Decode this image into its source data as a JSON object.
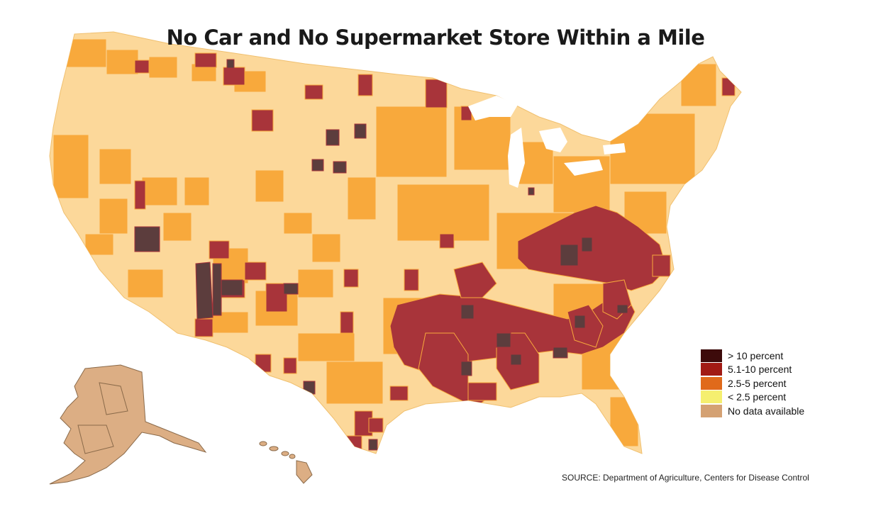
{
  "title": "No Car and No Supermarket Store Within a Mile",
  "legend": [
    {
      "label": "> 10 percent",
      "color": "#3d0b0b"
    },
    {
      "label": "5.1-10 percent",
      "color": "#a11a14"
    },
    {
      "label": "2.5-5 percent",
      "color": "#e06a1b"
    },
    {
      "label": "< 2.5 percent",
      "color": "#f5ef6f"
    },
    {
      "label": "No data available",
      "color": "#d4a173"
    }
  ],
  "source": "SOURCE: Department of Agriculture, Centers for Disease Control",
  "colors": {
    "low": "#fcd89a",
    "mid": "#f8a93c",
    "high": "#a8343a",
    "highest": "#5c3d3d",
    "nodata": "#dcae84",
    "border": "#ffffff"
  }
}
